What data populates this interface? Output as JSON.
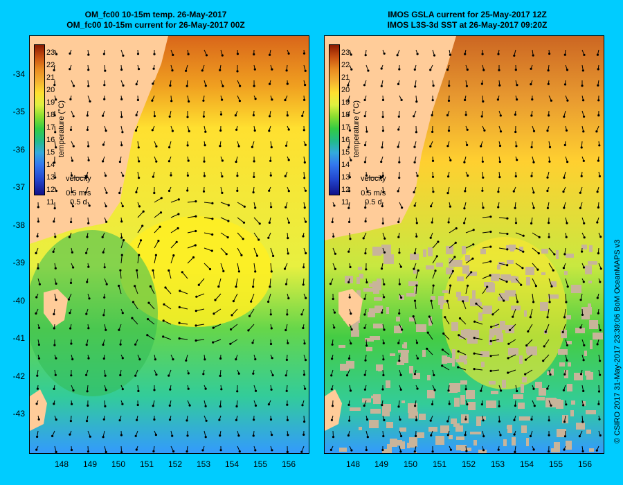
{
  "left_panel": {
    "title_line1": "OM_fc00 10-15m temp. 26-May-2017",
    "title_line2": "OM_fc00 10-15m current for 26-May-2017 00Z"
  },
  "right_panel": {
    "title_line1": "IMOS GSLA current for 25-May-2017 12Z",
    "title_line2": "IMOS L3S-3d SST at 26-May-2017 09:20Z"
  },
  "legend": {
    "colorbar_title": "temperature (°C)",
    "colorbar_labels": [
      "23",
      "22",
      "21",
      "20",
      "19",
      "18",
      "17",
      "16",
      "15",
      "14",
      "13",
      "12",
      "11"
    ],
    "velocity_label": "velocity",
    "velocity_scale": "0.5 m/s",
    "velocity_time": "0.5 d"
  },
  "y_ticks": [
    "-34",
    "-35",
    "-36",
    "-37",
    "-38",
    "-39",
    "-40",
    "-41",
    "-42",
    "-43"
  ],
  "x_ticks": [
    "148",
    "149",
    "150",
    "151",
    "152",
    "153",
    "154",
    "155",
    "156"
  ],
  "credit": "© CSIRO 2017   31-May-2017 23:39:06 BoM OceanMAPS v3",
  "colors": {
    "background": "#00ccff",
    "land": "#ffcc99",
    "cloud": "#c8b49a",
    "arrow": "#000000"
  }
}
